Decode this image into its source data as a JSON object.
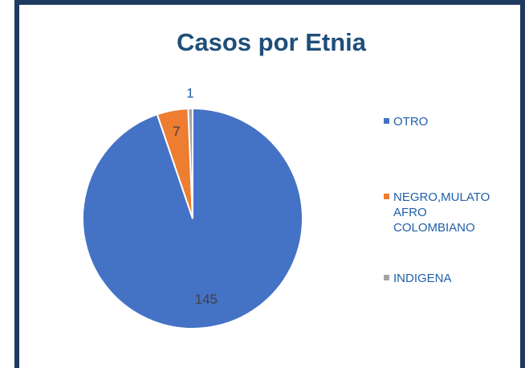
{
  "chart_data": {
    "type": "pie",
    "title": "Casos por Etnia",
    "categories": [
      "OTRO",
      "NEGRO,MULATO AFRO COLOMBIANO",
      "INDIGENA"
    ],
    "values": [
      145,
      7,
      1
    ],
    "colors": [
      "#4472c4",
      "#ed7d31",
      "#a5a5a5"
    ],
    "legend": "right"
  }
}
